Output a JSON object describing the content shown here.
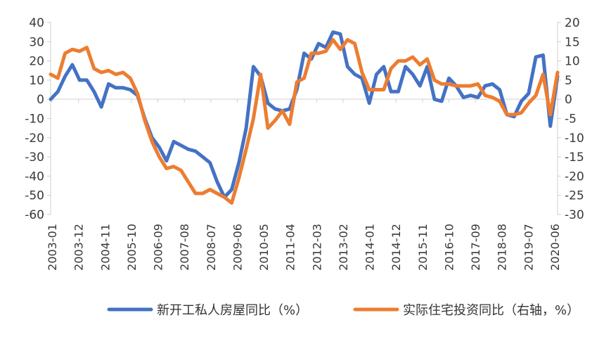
{
  "chart_data": {
    "type": "line",
    "title": "",
    "xlabel": "",
    "ylabel": "",
    "ylim": [
      -60,
      40
    ],
    "y2lim": [
      -30,
      20
    ],
    "yticks": [
      "40",
      "30",
      "20",
      "10",
      "0",
      "-10",
      "-20",
      "-30",
      "-40",
      "-50",
      "-60"
    ],
    "y2ticks": [
      "20",
      "15",
      "10",
      "5",
      "0",
      "-5",
      "-10",
      "-15",
      "-20",
      "-25",
      "-30"
    ],
    "xticks": [
      "2003-01",
      "2003-12",
      "2004-11",
      "2005-10",
      "2006-09",
      "2007-08",
      "2008-07",
      "2009-06",
      "2010-05",
      "2011-04",
      "2012-03",
      "2013-02",
      "2014-01",
      "2014-12",
      "2015-11",
      "2016-10",
      "2017-09",
      "2018-08",
      "2019-07",
      "2020-06"
    ],
    "series": [
      {
        "name": "新开工私人房屋同比（%）",
        "axis": "left",
        "color": "#4472C4",
        "points": [
          [
            0,
            0
          ],
          [
            2,
            4
          ],
          [
            4,
            12
          ],
          [
            6,
            18
          ],
          [
            8,
            10
          ],
          [
            10,
            10
          ],
          [
            12,
            4
          ],
          [
            14,
            -4
          ],
          [
            16,
            8
          ],
          [
            18,
            6
          ],
          [
            20,
            6
          ],
          [
            22,
            5
          ],
          [
            24,
            2
          ],
          [
            26,
            -10
          ],
          [
            28,
            -20
          ],
          [
            30,
            -25
          ],
          [
            32,
            -32
          ],
          [
            34,
            -22
          ],
          [
            36,
            -24
          ],
          [
            38,
            -26
          ],
          [
            40,
            -27
          ],
          [
            42,
            -30
          ],
          [
            44,
            -33
          ],
          [
            46,
            -43
          ],
          [
            48,
            -51
          ],
          [
            50,
            -47
          ],
          [
            52,
            -33
          ],
          [
            54,
            -15
          ],
          [
            56,
            17
          ],
          [
            58,
            12
          ],
          [
            60,
            -2
          ],
          [
            62,
            -5
          ],
          [
            64,
            -6
          ],
          [
            66,
            -5
          ],
          [
            68,
            5
          ],
          [
            70,
            24
          ],
          [
            72,
            21
          ],
          [
            74,
            29
          ],
          [
            76,
            27
          ],
          [
            78,
            35
          ],
          [
            80,
            34
          ],
          [
            82,
            17
          ],
          [
            84,
            13
          ],
          [
            86,
            11
          ],
          [
            88,
            -2
          ],
          [
            90,
            13
          ],
          [
            92,
            17
          ],
          [
            94,
            4
          ],
          [
            96,
            4
          ],
          [
            98,
            17
          ],
          [
            100,
            13
          ],
          [
            102,
            7
          ],
          [
            104,
            17
          ],
          [
            106,
            0
          ],
          [
            108,
            -1
          ],
          [
            110,
            11
          ],
          [
            112,
            7
          ],
          [
            114,
            1
          ],
          [
            116,
            2
          ],
          [
            118,
            1
          ],
          [
            120,
            7
          ],
          [
            122,
            8
          ],
          [
            124,
            5
          ],
          [
            126,
            -8
          ],
          [
            128,
            -9
          ],
          [
            130,
            -1
          ],
          [
            132,
            3
          ],
          [
            134,
            22
          ],
          [
            136,
            23
          ],
          [
            138,
            -14
          ],
          [
            140,
            12
          ]
        ]
      },
      {
        "name": "实际住宅投资同比（右轴，%）",
        "axis": "right",
        "color": "#ED7D31",
        "points": [
          [
            0,
            6.5
          ],
          [
            2,
            5.5
          ],
          [
            4,
            12
          ],
          [
            6,
            13
          ],
          [
            8,
            12.5
          ],
          [
            10,
            13.5
          ],
          [
            12,
            8
          ],
          [
            14,
            7
          ],
          [
            16,
            7.5
          ],
          [
            18,
            6.5
          ],
          [
            20,
            7
          ],
          [
            22,
            5.5
          ],
          [
            24,
            1.5
          ],
          [
            26,
            -5.5
          ],
          [
            28,
            -11
          ],
          [
            30,
            -15
          ],
          [
            32,
            -18
          ],
          [
            34,
            -17.5
          ],
          [
            36,
            -18.5
          ],
          [
            38,
            -21.5
          ],
          [
            40,
            -24.5
          ],
          [
            42,
            -24.5
          ],
          [
            44,
            -23.5
          ],
          [
            46,
            -24.5
          ],
          [
            48,
            -25.5
          ],
          [
            50,
            -27
          ],
          [
            52,
            -20.5
          ],
          [
            54,
            -13
          ],
          [
            56,
            -5
          ],
          [
            58,
            6.5
          ],
          [
            60,
            -7.5
          ],
          [
            62,
            -5.5
          ],
          [
            64,
            -3
          ],
          [
            66,
            -6.5
          ],
          [
            68,
            4.5
          ],
          [
            70,
            5.5
          ],
          [
            72,
            12
          ],
          [
            74,
            12
          ],
          [
            76,
            12.5
          ],
          [
            78,
            15.5
          ],
          [
            80,
            13
          ],
          [
            82,
            15.5
          ],
          [
            84,
            14.5
          ],
          [
            86,
            7
          ],
          [
            88,
            2.5
          ],
          [
            90,
            2.5
          ],
          [
            92,
            2.5
          ],
          [
            94,
            8
          ],
          [
            96,
            10
          ],
          [
            98,
            10
          ],
          [
            100,
            11
          ],
          [
            102,
            9
          ],
          [
            104,
            10.5
          ],
          [
            106,
            5
          ],
          [
            108,
            4
          ],
          [
            110,
            4
          ],
          [
            112,
            3.5
          ],
          [
            114,
            3.5
          ],
          [
            116,
            3.5
          ],
          [
            118,
            4
          ],
          [
            120,
            1
          ],
          [
            122,
            0.5
          ],
          [
            124,
            -0.5
          ],
          [
            126,
            -4
          ],
          [
            128,
            -4
          ],
          [
            130,
            -3.5
          ],
          [
            132,
            -1
          ],
          [
            134,
            1
          ],
          [
            136,
            6.5
          ],
          [
            138,
            -4
          ],
          [
            140,
            7
          ]
        ]
      }
    ],
    "legend": [
      "新开工私人房屋同比（%）",
      "实际住宅投资同比（右轴，%）"
    ],
    "legend_position": "bottom",
    "grid": false
  }
}
